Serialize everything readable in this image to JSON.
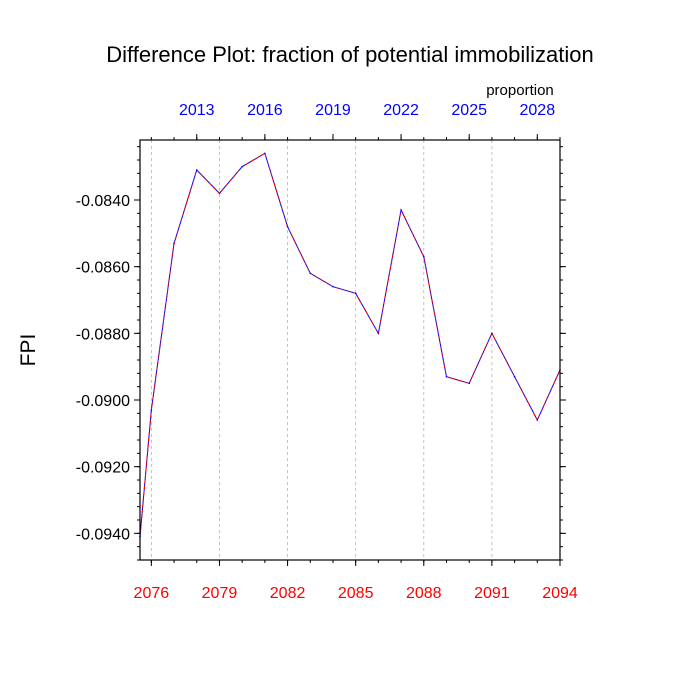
{
  "chart_data": {
    "type": "line",
    "title": "Difference Plot: fraction of potential immobilization",
    "units_label": "proportion",
    "ylabel": "FPI",
    "xlabel": "",
    "ylim": [
      -0.0948,
      -0.0822
    ],
    "y_ticks": [
      -0.084,
      -0.086,
      -0.088,
      -0.09,
      -0.092,
      -0.094
    ],
    "y_tick_labels": [
      "-0.0840",
      "-0.0860",
      "-0.0880",
      "-0.0900",
      "-0.0920",
      "-0.0940"
    ],
    "x_bottom": {
      "range": [
        2075.5,
        2094
      ],
      "ticks": [
        2076,
        2079,
        2082,
        2085,
        2088,
        2091,
        2094
      ],
      "tick_labels": [
        "2076",
        "2079",
        "2082",
        "2085",
        "2088",
        "2091",
        "2094"
      ],
      "color": "#ff0000"
    },
    "x_top": {
      "range": [
        2010.5,
        2029
      ],
      "ticks": [
        2013,
        2016,
        2019,
        2022,
        2025,
        2028
      ],
      "tick_labels": [
        "2013",
        "2016",
        "2019",
        "2022",
        "2025",
        "2028"
      ],
      "color": "#0000ff"
    },
    "grid": "vertical dashed at bottom-axis ticks",
    "series": [
      {
        "color": "#0000ff",
        "overlay_color": "#ff0000",
        "style": "dashed",
        "x": [
          2075.5,
          2076,
          2077,
          2078,
          2079,
          2080,
          2081,
          2082,
          2083,
          2084,
          2085,
          2086,
          2087,
          2088,
          2089,
          2090,
          2091,
          2092,
          2093,
          2094
        ],
        "y": [
          -0.0941,
          -0.0903,
          -0.0853,
          -0.0831,
          -0.0838,
          -0.083,
          -0.0826,
          -0.0848,
          -0.0862,
          -0.0866,
          -0.0868,
          -0.088,
          -0.0843,
          -0.0857,
          -0.0893,
          -0.0895,
          -0.088,
          -0.0893,
          -0.0906,
          -0.0891
        ]
      }
    ]
  }
}
